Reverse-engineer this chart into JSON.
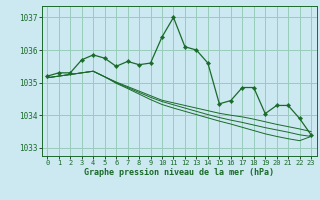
{
  "title": "Graphe pression niveau de la mer (hPa)",
  "background_color": "#cce8f0",
  "grid_color": "#99ccbb",
  "line_color": "#1a6b2a",
  "xlim": [
    -0.5,
    23.5
  ],
  "ylim": [
    1032.75,
    1037.35
  ],
  "yticks": [
    1033,
    1034,
    1035,
    1036,
    1037
  ],
  "xticks": [
    0,
    1,
    2,
    3,
    4,
    5,
    6,
    7,
    8,
    9,
    10,
    11,
    12,
    13,
    14,
    15,
    16,
    17,
    18,
    19,
    20,
    21,
    22,
    23
  ],
  "series": [
    [
      1035.2,
      1035.3,
      1035.3,
      1035.7,
      1035.85,
      1035.75,
      1035.5,
      1035.65,
      1035.55,
      1035.6,
      1036.4,
      1037.0,
      1036.1,
      1036.0,
      1035.6,
      1034.35,
      1034.45,
      1034.85,
      1034.85,
      1034.05,
      1034.3,
      1034.3,
      1033.9,
      1033.4
    ],
    [
      1035.15,
      1035.2,
      1035.25,
      1035.3,
      1035.35,
      1035.18,
      1035.02,
      1034.88,
      1034.74,
      1034.6,
      1034.46,
      1034.38,
      1034.3,
      1034.22,
      1034.14,
      1034.06,
      1034.0,
      1033.95,
      1033.88,
      1033.8,
      1033.72,
      1033.65,
      1033.58,
      1033.5
    ],
    [
      1035.15,
      1035.2,
      1035.25,
      1035.3,
      1035.35,
      1035.18,
      1035.0,
      1034.85,
      1034.7,
      1034.55,
      1034.42,
      1034.32,
      1034.22,
      1034.12,
      1034.02,
      1033.93,
      1033.85,
      1033.78,
      1033.7,
      1033.62,
      1033.55,
      1033.48,
      1033.4,
      1033.35
    ],
    [
      1035.15,
      1035.2,
      1035.25,
      1035.3,
      1035.35,
      1035.18,
      1034.98,
      1034.82,
      1034.65,
      1034.48,
      1034.33,
      1034.22,
      1034.12,
      1034.02,
      1033.92,
      1033.82,
      1033.73,
      1033.63,
      1033.53,
      1033.43,
      1033.35,
      1033.28,
      1033.22,
      1033.35
    ]
  ]
}
